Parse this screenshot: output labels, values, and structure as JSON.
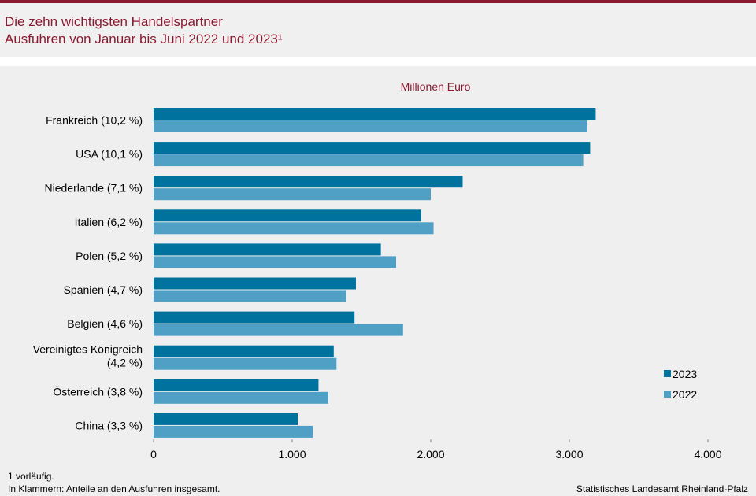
{
  "header": {
    "title_line1": "Die zehn wichtigsten Handelspartner",
    "title_line2": "Ausfuhren von Januar bis Juni 2022 und 2023¹"
  },
  "footer": {
    "note1": "1 vorläufig.",
    "note2": "In Klammern: Anteile an den Ausfuhren insgesamt.",
    "source": "Statistisches Landesamt Rheinland-Pfalz"
  },
  "colors": {
    "accent": "#8b1a30",
    "series_2023": "#00729e",
    "series_2022": "#4fa0c4"
  },
  "chart_data": {
    "type": "bar",
    "orientation": "horizontal",
    "unit_label": "Millionen Euro",
    "categories": [
      [
        "Frankreich (10,2 %)"
      ],
      [
        "USA (10,1 %)"
      ],
      [
        "Niederlande (7,1 %)"
      ],
      [
        "Italien (6,2 %)"
      ],
      [
        "Polen (5,2 %)"
      ],
      [
        "Spanien (4,7 %)"
      ],
      [
        "Belgien (4,6 %)"
      ],
      [
        "Vereinigtes Königreich",
        "(4,2 %)"
      ],
      [
        "Österreich (3,8 %)"
      ],
      [
        "China (3,3 %)"
      ]
    ],
    "series": [
      {
        "name": "2023",
        "values": [
          3190,
          3150,
          2230,
          1930,
          1640,
          1460,
          1450,
          1300,
          1190,
          1040
        ]
      },
      {
        "name": "2022",
        "values": [
          3130,
          3100,
          2000,
          2020,
          1750,
          1390,
          1800,
          1320,
          1260,
          1150
        ]
      }
    ],
    "xlim": [
      0,
      4000
    ],
    "xticks": [
      0,
      1000,
      2000,
      3000,
      4000
    ],
    "xtick_labels": [
      "0",
      "1.000",
      "2.000",
      "3.000",
      "4.000"
    ],
    "grid": false,
    "legend_position": "bottom-right"
  }
}
